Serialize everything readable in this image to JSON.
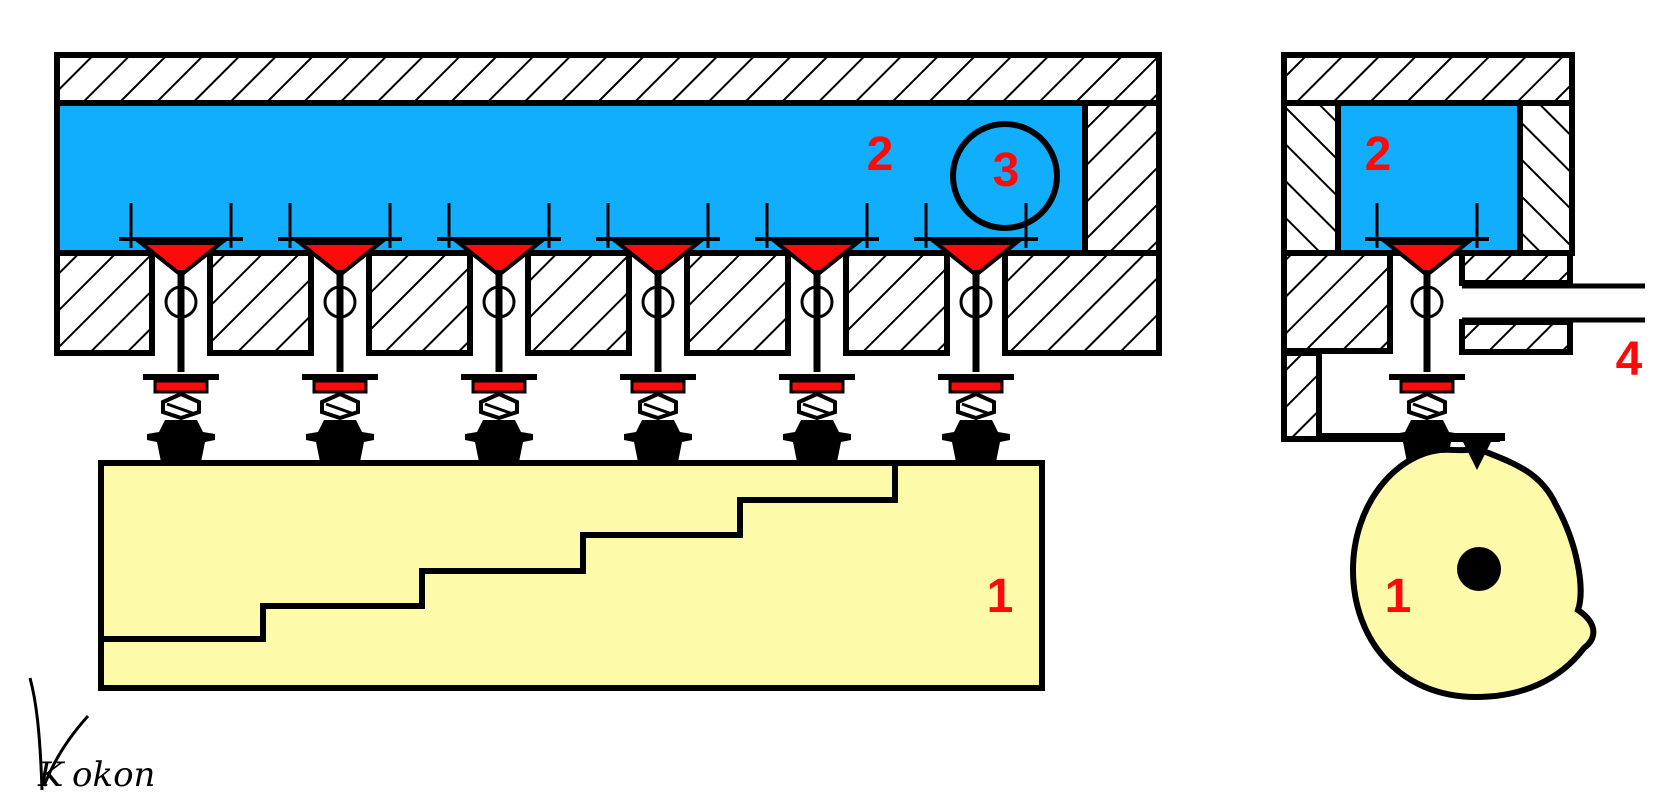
{
  "labels": {
    "cam_long": "1",
    "chamber_long": "2",
    "detail_circle": "3",
    "chamber_end": "2",
    "cam_round": "1",
    "outlet": "4"
  },
  "signature": {
    "initial": "K",
    "rest": "okon"
  },
  "colors": {
    "chamber_fill": "#12aefe",
    "valve_red": "#ff0a0a",
    "label_red": "#ff0a0a",
    "cam_fill": "#fdfaa9",
    "hatch": "#000000",
    "outline": "#000000"
  },
  "diagram": {
    "valve_count": 6,
    "cam_steps": 5,
    "end_view_valves": 1
  }
}
